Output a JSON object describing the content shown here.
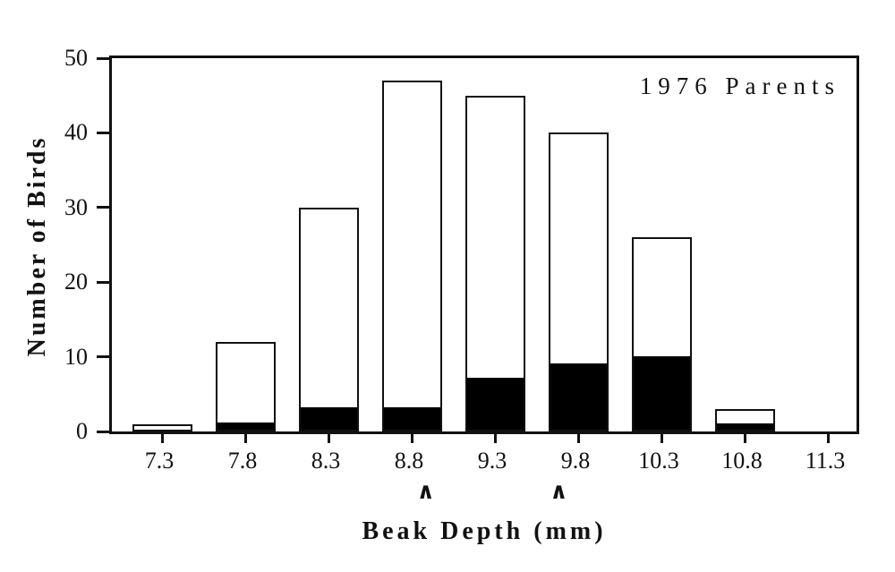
{
  "chart_data": {
    "type": "bar",
    "subtype": "stacked-histogram",
    "annotation": "1976 Parents",
    "xlabel": "Beak Depth (mm)",
    "ylabel": "Number of Birds",
    "categories": [
      "7.3",
      "7.8",
      "8.3",
      "8.8",
      "9.3",
      "9.8",
      "10.3",
      "10.8",
      "11.3"
    ],
    "series": [
      {
        "name": "black-segment",
        "color": "#000000",
        "values": [
          0,
          1,
          3,
          3,
          7,
          9,
          10,
          1,
          0
        ]
      },
      {
        "name": "white-segment",
        "color": "#ffffff",
        "values": [
          1,
          11,
          27,
          44,
          38,
          31,
          16,
          2,
          0
        ]
      }
    ],
    "totals": [
      1,
      12,
      30,
      47,
      45,
      40,
      26,
      3,
      0
    ],
    "x_unit": "mm",
    "x_start": 7.3,
    "x_step": 0.5,
    "ylim": [
      0,
      50
    ],
    "yticks": [
      0,
      10,
      20,
      30,
      40,
      50
    ],
    "grid": false,
    "legend": "none",
    "markers": [
      {
        "glyph": "∧",
        "x_mm": 8.9
      },
      {
        "glyph": "∧",
        "x_mm": 9.7
      }
    ]
  }
}
